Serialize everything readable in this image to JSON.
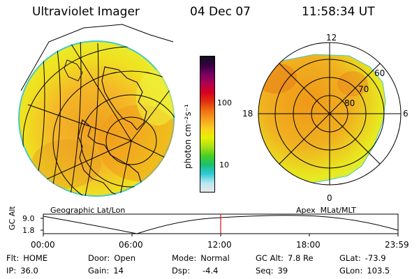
{
  "header": {
    "instrument": "Ultraviolet Imager",
    "date": "04 Dec 07",
    "time": "11:58:34 UT"
  },
  "colorbar": {
    "unit_label": "photon cm⁻²s⁻¹",
    "tick_labels": [
      "100",
      "10"
    ],
    "colors": [
      "#e8e8e8",
      "#b4e8f0",
      "#30c8d8",
      "#18c070",
      "#48d020",
      "#a8e018",
      "#e8f000",
      "#f8d020",
      "#f8a020",
      "#f07010",
      "#e03010",
      "#d80020",
      "#b00050",
      "#780060",
      "#380040",
      "#101020"
    ]
  },
  "left_map": {
    "label": "Geographic Lat/Lon"
  },
  "right_map": {
    "label": "Apex  MLat/MLT",
    "mlt_labels": {
      "top": "12",
      "left": "18",
      "right": "6",
      "bottom": "0"
    },
    "lat_labels": [
      "60",
      "70",
      "80"
    ]
  },
  "altitude_plot": {
    "ylabel": "GC Alt",
    "yticks": [
      "9.0",
      "1.8"
    ],
    "xticks": [
      "00:00",
      "06:00",
      "12:00",
      "18:00",
      "23:59"
    ],
    "current_time_marker": "11:58"
  },
  "status": {
    "flt_label": "Flt:",
    "flt_value": "HOME",
    "ip_label": "IP:",
    "ip_value": "36.0",
    "door_label": "Door:",
    "door_value": "Open",
    "gain_label": "Gain:",
    "gain_value": "14",
    "mode_label": "Mode:",
    "mode_value": "Normal",
    "dsp_label": "Dsp:",
    "dsp_value": "-4.4",
    "gcalt_label": "GC Alt:",
    "gcalt_value": "7.8 Re",
    "seq_label": "Seq:",
    "seq_value": "39",
    "glat_label": "GLat:",
    "glat_value": "-73.9",
    "glon_label": "GLon:",
    "glon_value": "103.5"
  }
}
